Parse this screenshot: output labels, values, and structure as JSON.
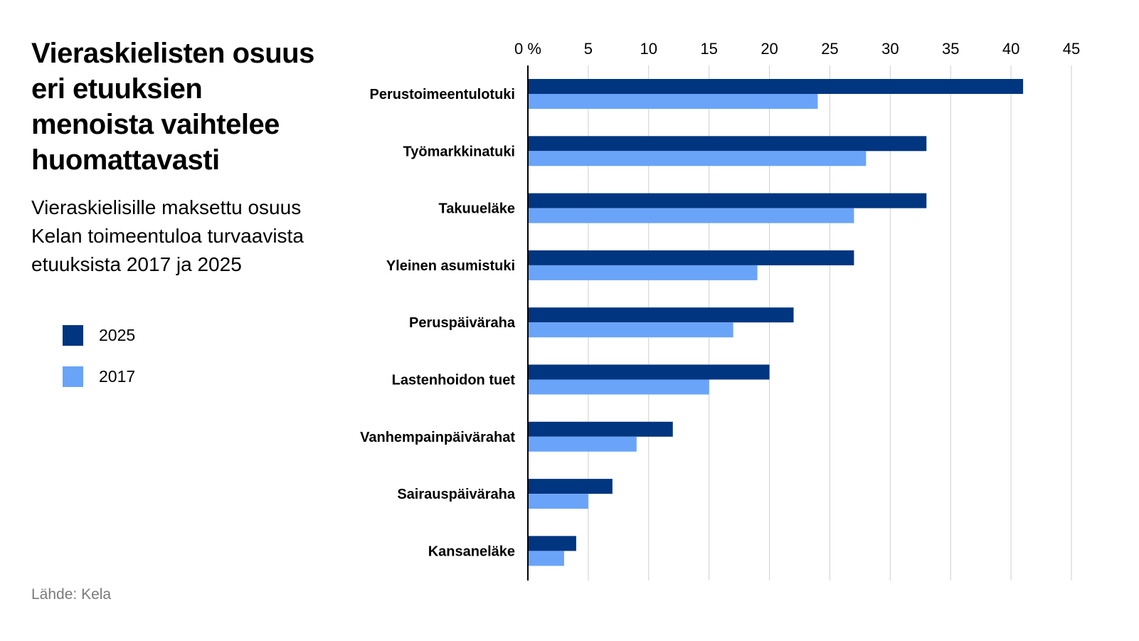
{
  "header": {
    "title_lines": [
      "Vieraskielisten osuus",
      "eri etuuksien",
      "menoista vaihtelee",
      "huomattavasti"
    ],
    "subtitle_lines": [
      "Vieraskielisille maksettu osuus",
      "Kelan toimeentuloa turvaavista",
      "etuuksista 2017 ja 2025"
    ]
  },
  "legend": [
    {
      "label": "2025",
      "color": "#003580"
    },
    {
      "label": "2017",
      "color": "#6aa4f8"
    }
  ],
  "source": "Lähde: Kela",
  "chart_data": {
    "type": "bar",
    "orientation": "horizontal",
    "categories": [
      "Perustoimeentulotuki",
      "Työmarkkinatuki",
      "Takuueläke",
      "Yleinen asumistuki",
      "Peruspäiväraha",
      "Lastenhoidon tuet",
      "Vanhempainpäivärahat",
      "Sairauspäiväraha",
      "Kansaneläke"
    ],
    "series": [
      {
        "name": "2025",
        "color": "#003580",
        "values": [
          41,
          33,
          33,
          27,
          22,
          20,
          12,
          7,
          4
        ]
      },
      {
        "name": "2017",
        "color": "#6aa4f8",
        "values": [
          24,
          28,
          27,
          19,
          17,
          15,
          9,
          5,
          3
        ]
      }
    ],
    "xlim": [
      0,
      45
    ],
    "ticks": [
      0,
      5,
      10,
      15,
      20,
      25,
      30,
      35,
      40,
      45
    ],
    "tick_labels": [
      "0 %",
      "5",
      "10",
      "15",
      "20",
      "25",
      "30",
      "35",
      "40",
      "45"
    ],
    "grid": true,
    "legend_position": "left"
  }
}
